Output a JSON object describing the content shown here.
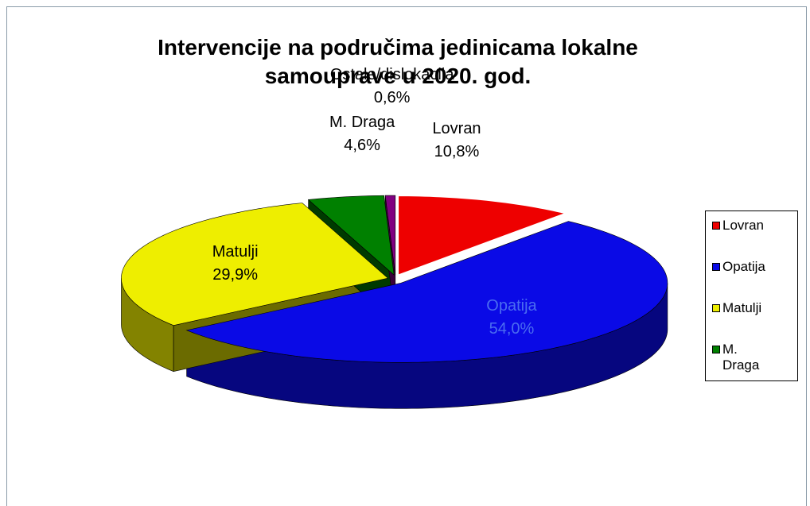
{
  "chart_data": {
    "type": "pie",
    "style": "3d",
    "title": "Intervencije na područima jedinicama lokalne samouprave u 2020. god.",
    "categories": [
      "Lovran",
      "Opatija",
      "Matulji",
      "M. Draga",
      "Ostale/dislokacija"
    ],
    "values": [
      10.8,
      54.0,
      29.9,
      4.6,
      0.6
    ],
    "value_labels": [
      "10,8%",
      "54,0%",
      "29,9%",
      "4,6%",
      "0,6%"
    ],
    "colors": [
      "#ee0000",
      "#0a0ae6",
      "#eeee00",
      "#008000",
      "#800080"
    ],
    "in_legend": [
      true,
      true,
      true,
      true,
      false
    ],
    "legend": "right"
  }
}
